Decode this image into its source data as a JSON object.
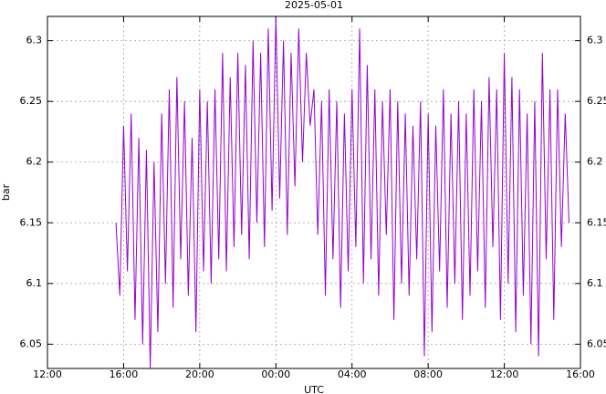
{
  "chart_data": {
    "type": "line",
    "title": "2025-05-01",
    "xlabel": "UTC",
    "ylabel": "bar",
    "x": [
      15.6,
      15.8,
      16,
      16.2,
      16.4,
      16.6,
      16.8,
      17,
      17.2,
      17.4,
      17.6,
      17.8,
      18,
      18.2,
      18.4,
      18.6,
      18.8,
      19,
      19.2,
      19.4,
      19.6,
      19.8,
      20,
      20.2,
      20.4,
      20.6,
      20.8,
      21,
      21.2,
      21.4,
      21.6,
      21.8,
      22,
      22.2,
      22.4,
      22.6,
      22.8,
      23,
      23.2,
      23.4,
      23.6,
      23.8,
      24,
      24.2,
      24.4,
      24.6,
      24.8,
      25,
      25.2,
      25.4,
      25.6,
      25.8,
      26,
      26.2,
      26.4,
      26.6,
      26.8,
      27,
      27.2,
      27.4,
      27.6,
      27.8,
      28,
      28.2,
      28.4,
      28.6,
      28.8,
      29,
      29.2,
      29.4,
      29.6,
      29.8,
      30,
      30.2,
      30.4,
      30.6,
      30.8,
      31,
      31.2,
      31.4,
      31.6,
      31.8,
      32,
      32.2,
      32.4,
      32.6,
      32.8,
      33,
      33.2,
      33.4,
      33.6,
      33.8,
      34,
      34.2,
      34.4,
      34.6,
      34.8,
      35,
      35.2,
      35.4,
      35.6,
      35.8,
      36,
      36.2,
      36.4,
      36.6,
      36.8,
      37,
      37.2,
      37.4,
      37.6,
      37.8,
      38,
      38.2,
      38.4,
      38.6,
      38.8,
      39,
      39.2,
      39.4
    ],
    "series": [
      {
        "name": "bar",
        "color": "#9400d3",
        "values": [
          6.15,
          6.09,
          6.23,
          6.11,
          6.24,
          6.07,
          6.22,
          6.05,
          6.21,
          6.03,
          6.2,
          6.06,
          6.24,
          6.1,
          6.26,
          6.08,
          6.27,
          6.12,
          6.25,
          6.09,
          6.22,
          6.06,
          6.26,
          6.11,
          6.25,
          6.1,
          6.26,
          6.12,
          6.29,
          6.11,
          6.27,
          6.13,
          6.29,
          6.14,
          6.28,
          6.12,
          6.3,
          6.15,
          6.29,
          6.13,
          6.31,
          6.16,
          6.32,
          6.17,
          6.3,
          6.14,
          6.29,
          6.18,
          6.31,
          6.2,
          6.29,
          6.23,
          6.26,
          6.14,
          6.25,
          6.09,
          6.26,
          6.12,
          6.25,
          6.08,
          6.24,
          6.11,
          6.26,
          6.13,
          6.31,
          6.1,
          6.28,
          6.12,
          6.26,
          6.09,
          6.25,
          6.14,
          6.26,
          6.07,
          6.25,
          6.1,
          6.24,
          6.09,
          6.23,
          6.12,
          6.25,
          6.04,
          6.24,
          6.06,
          6.23,
          6.11,
          6.26,
          6.08,
          6.24,
          6.1,
          6.25,
          6.07,
          6.24,
          6.09,
          6.26,
          6.11,
          6.25,
          6.08,
          6.27,
          6.13,
          6.26,
          6.07,
          6.29,
          6.1,
          6.27,
          6.06,
          6.26,
          6.09,
          6.24,
          6.05,
          6.25,
          6.04,
          6.29,
          6.12,
          6.26,
          6.07,
          6.26,
          6.13,
          6.24,
          6.15
        ]
      }
    ],
    "xlim": [
      12,
      40
    ],
    "xticks": [
      {
        "value": 12,
        "label": "12:00"
      },
      {
        "value": 16,
        "label": "16:00"
      },
      {
        "value": 20,
        "label": "20:00"
      },
      {
        "value": 24,
        "label": "00:00"
      },
      {
        "value": 28,
        "label": "04:00"
      },
      {
        "value": 32,
        "label": "08:00"
      },
      {
        "value": 36,
        "label": "12:00"
      },
      {
        "value": 40,
        "label": "16:00"
      }
    ],
    "ylim": [
      6.03,
      6.32
    ],
    "yticks": [
      6.05,
      6.1,
      6.15,
      6.2,
      6.25,
      6.3
    ],
    "grid": true
  }
}
